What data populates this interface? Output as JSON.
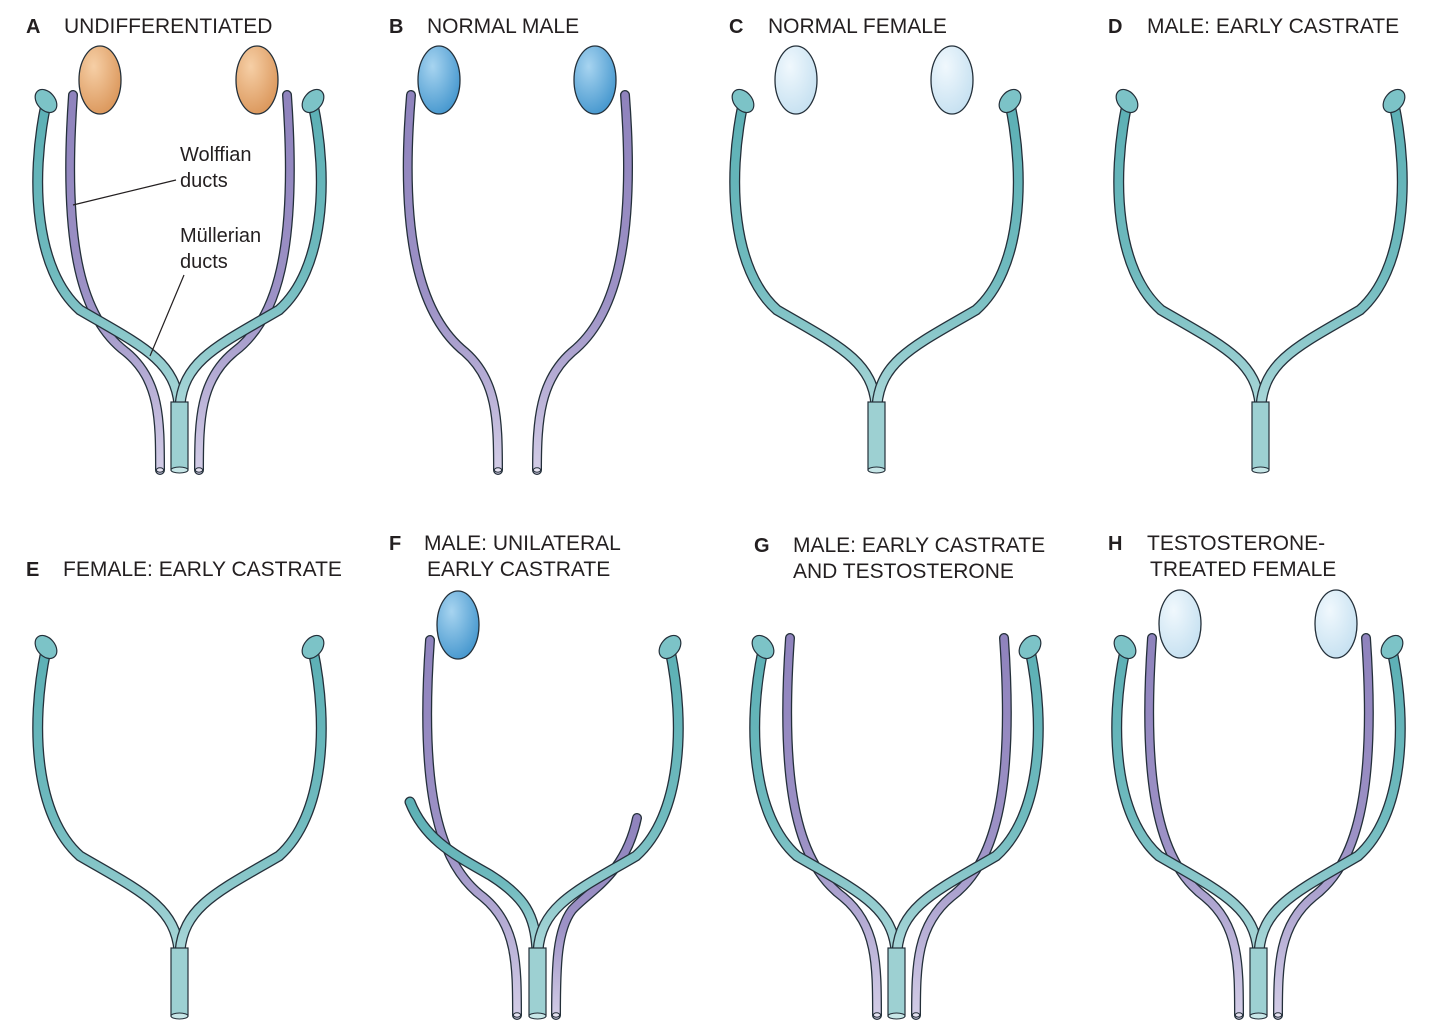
{
  "figure": {
    "panels": [
      {
        "letter": "A",
        "title_lines": [
          "UNDIFFERENTIATED"
        ],
        "gonad": "indifferent",
        "left_wolffian": true,
        "right_wolffian": true,
        "left_mullerian": true,
        "right_mullerian": true,
        "mullerian_fused": true
      },
      {
        "letter": "B",
        "title_lines": [
          "NORMAL MALE"
        ],
        "gonad": "testis",
        "left_wolffian": true,
        "right_wolffian": true,
        "left_mullerian": false,
        "right_mullerian": false,
        "mullerian_fused": false
      },
      {
        "letter": "C",
        "title_lines": [
          "NORMAL FEMALE"
        ],
        "gonad": "ovary",
        "left_wolffian": false,
        "right_wolffian": false,
        "left_mullerian": true,
        "right_mullerian": true,
        "mullerian_fused": true
      },
      {
        "letter": "D",
        "title_lines": [
          "MALE: EARLY CASTRATE"
        ],
        "gonad": "none",
        "left_wolffian": false,
        "right_wolffian": false,
        "left_mullerian": true,
        "right_mullerian": true,
        "mullerian_fused": true
      },
      {
        "letter": "E",
        "title_lines": [
          "FEMALE: EARLY CASTRATE"
        ],
        "gonad": "none",
        "left_wolffian": false,
        "right_wolffian": false,
        "left_mullerian": true,
        "right_mullerian": true,
        "mullerian_fused": true
      },
      {
        "letter": "F",
        "title_lines": [
          "MALE: UNILATERAL",
          "EARLY CASTRATE"
        ],
        "gonad": "testis-left-only",
        "left_wolffian": true,
        "right_wolffian": "regressed",
        "left_mullerian": "regressed",
        "right_mullerian": true,
        "mullerian_fused": true
      },
      {
        "letter": "G",
        "title_lines": [
          "MALE: EARLY CASTRATE",
          "AND TESTOSTERONE"
        ],
        "gonad": "none",
        "left_wolffian": true,
        "right_wolffian": true,
        "left_mullerian": true,
        "right_mullerian": true,
        "mullerian_fused": true
      },
      {
        "letter": "H",
        "title_lines": [
          "TESTOSTERONE-",
          "TREATED FEMALE"
        ],
        "gonad": "ovary",
        "left_wolffian": true,
        "right_wolffian": true,
        "left_mullerian": true,
        "right_mullerian": true,
        "mullerian_fused": true
      }
    ],
    "annotations": {
      "wolffian": [
        "Wolffian",
        "ducts"
      ],
      "mullerian": [
        "Müllerian",
        "ducts"
      ]
    },
    "colors": {
      "mullerian_duct": "#5cb0b5",
      "mullerian_duct_light": "#9dd0d2",
      "wolffian_duct": "#8f83bd",
      "wolffian_duct_light": "#c9c2e0",
      "outline": "#24303a",
      "indifferent_gonad": "#e3a46e",
      "testis": "#5aa8da",
      "ovary": "#d4e9f5"
    }
  }
}
